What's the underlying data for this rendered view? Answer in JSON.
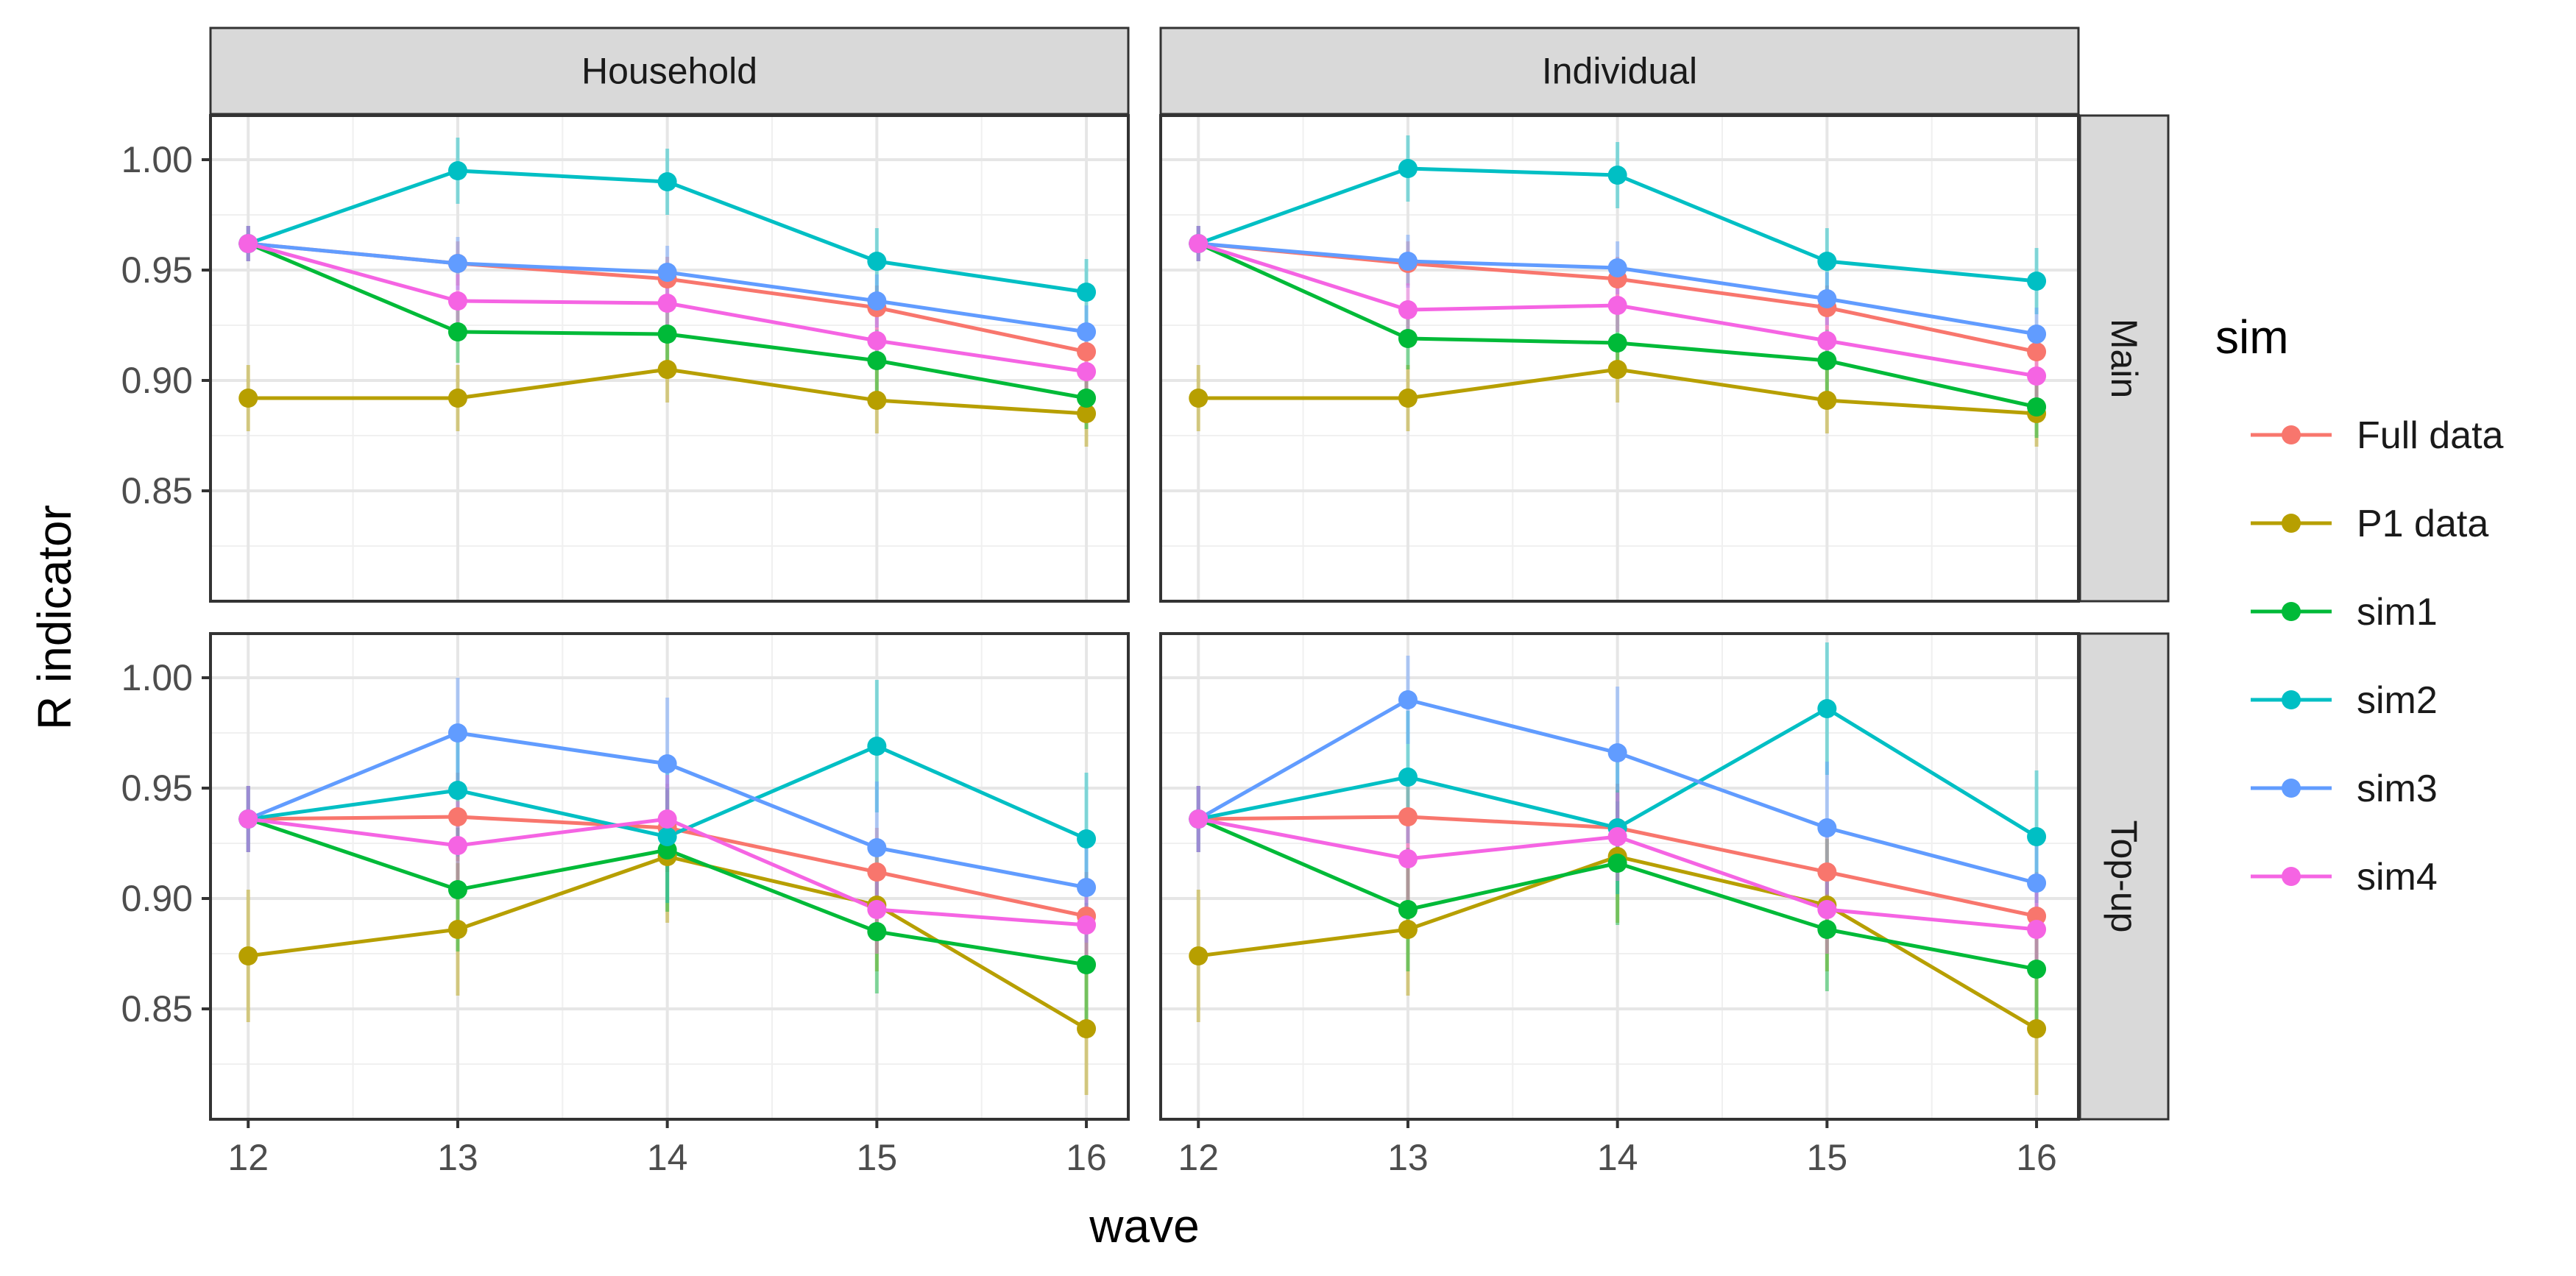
{
  "chart_data": {
    "type": "line",
    "xlabel": "wave",
    "ylabel": "R indicator",
    "x": [
      12,
      13,
      14,
      15,
      16
    ],
    "x_ticks": [
      "12",
      "13",
      "14",
      "15",
      "16"
    ],
    "y_ticks": [
      "0.85",
      "0.90",
      "0.95",
      "1.00"
    ],
    "ylim": [
      0.8,
      1.02
    ],
    "xlim": [
      11.82,
      16.2
    ],
    "grid": true,
    "facet_cols": [
      "Household",
      "Individual"
    ],
    "facet_rows": [
      "Main",
      "Top-up"
    ],
    "legend": {
      "title": "sim",
      "position": "right",
      "entries": [
        {
          "label": "Full data",
          "color": "#F8766D"
        },
        {
          "label": "P1 data",
          "color": "#B79F00"
        },
        {
          "label": "sim1",
          "color": "#00BA38"
        },
        {
          "label": "sim2",
          "color": "#00BFC4"
        },
        {
          "label": "sim3",
          "color": "#619CFF"
        },
        {
          "label": "sim4",
          "color": "#F564E3"
        }
      ]
    },
    "panels": [
      {
        "col": "Household",
        "row": "Main",
        "series": [
          {
            "name": "Full data",
            "values": [
              0.962,
              0.953,
              0.946,
              0.933,
              0.913
            ],
            "err": [
              0.008,
              0.01,
              0.01,
              0.01,
              0.01
            ]
          },
          {
            "name": "P1 data",
            "values": [
              0.892,
              0.892,
              0.905,
              0.891,
              0.885
            ],
            "err": [
              0.015,
              0.015,
              0.015,
              0.015,
              0.015
            ]
          },
          {
            "name": "sim1",
            "values": [
              0.962,
              0.922,
              0.921,
              0.909,
              0.892
            ],
            "err": [
              0.008,
              0.014,
              0.014,
              0.014,
              0.014
            ]
          },
          {
            "name": "sim2",
            "values": [
              0.962,
              0.995,
              0.99,
              0.954,
              0.94
            ],
            "err": [
              0.008,
              0.015,
              0.015,
              0.015,
              0.015
            ]
          },
          {
            "name": "sim3",
            "values": [
              0.962,
              0.953,
              0.949,
              0.936,
              0.922
            ],
            "err": [
              0.008,
              0.012,
              0.012,
              0.012,
              0.012
            ]
          },
          {
            "name": "sim4",
            "values": [
              0.962,
              0.936,
              0.935,
              0.918,
              0.904
            ],
            "err": [
              0.008,
              0.012,
              0.012,
              0.012,
              0.012
            ]
          }
        ]
      },
      {
        "col": "Individual",
        "row": "Main",
        "series": [
          {
            "name": "Full data",
            "values": [
              0.962,
              0.953,
              0.946,
              0.933,
              0.913
            ],
            "err": [
              0.008,
              0.01,
              0.01,
              0.01,
              0.01
            ]
          },
          {
            "name": "P1 data",
            "values": [
              0.892,
              0.892,
              0.905,
              0.891,
              0.885
            ],
            "err": [
              0.015,
              0.015,
              0.015,
              0.015,
              0.015
            ]
          },
          {
            "name": "sim1",
            "values": [
              0.962,
              0.919,
              0.917,
              0.909,
              0.888
            ],
            "err": [
              0.008,
              0.014,
              0.014,
              0.014,
              0.014
            ]
          },
          {
            "name": "sim2",
            "values": [
              0.962,
              0.996,
              0.993,
              0.954,
              0.945
            ],
            "err": [
              0.008,
              0.015,
              0.015,
              0.015,
              0.015
            ]
          },
          {
            "name": "sim3",
            "values": [
              0.962,
              0.954,
              0.951,
              0.937,
              0.921
            ],
            "err": [
              0.008,
              0.012,
              0.012,
              0.012,
              0.012
            ]
          },
          {
            "name": "sim4",
            "values": [
              0.962,
              0.932,
              0.934,
              0.918,
              0.902
            ],
            "err": [
              0.008,
              0.012,
              0.012,
              0.012,
              0.012
            ]
          }
        ]
      },
      {
        "col": "Household",
        "row": "Top-up",
        "series": [
          {
            "name": "Full data",
            "values": [
              0.936,
              0.937,
              0.932,
              0.912,
              0.892
            ],
            "err": [
              0.015,
              0.02,
              0.02,
              0.02,
              0.02
            ]
          },
          {
            "name": "P1 data",
            "values": [
              0.874,
              0.886,
              0.919,
              0.897,
              0.841
            ],
            "err": [
              0.03,
              0.03,
              0.03,
              0.03,
              0.03
            ]
          },
          {
            "name": "sim1",
            "values": [
              0.936,
              0.904,
              0.922,
              0.885,
              0.87
            ],
            "err": [
              0.015,
              0.028,
              0.028,
              0.028,
              0.028
            ]
          },
          {
            "name": "sim2",
            "values": [
              0.936,
              0.949,
              0.928,
              0.969,
              0.927
            ],
            "err": [
              0.015,
              0.03,
              0.03,
              0.03,
              0.03
            ]
          },
          {
            "name": "sim3",
            "values": [
              0.936,
              0.975,
              0.961,
              0.923,
              0.905
            ],
            "err": [
              0.015,
              0.025,
              0.03,
              0.03,
              0.025
            ]
          },
          {
            "name": "sim4",
            "values": [
              0.936,
              0.924,
              0.936,
              0.895,
              0.888
            ],
            "err": [
              0.015,
              0.02,
              0.02,
              0.02,
              0.02
            ]
          }
        ]
      },
      {
        "col": "Individual",
        "row": "Top-up",
        "series": [
          {
            "name": "Full data",
            "values": [
              0.936,
              0.937,
              0.932,
              0.912,
              0.892
            ],
            "err": [
              0.015,
              0.02,
              0.02,
              0.02,
              0.02
            ]
          },
          {
            "name": "P1 data",
            "values": [
              0.874,
              0.886,
              0.919,
              0.897,
              0.841
            ],
            "err": [
              0.03,
              0.03,
              0.03,
              0.03,
              0.03
            ]
          },
          {
            "name": "sim1",
            "values": [
              0.936,
              0.895,
              0.916,
              0.886,
              0.868
            ],
            "err": [
              0.015,
              0.028,
              0.028,
              0.028,
              0.028
            ]
          },
          {
            "name": "sim2",
            "values": [
              0.936,
              0.955,
              0.932,
              0.986,
              0.928
            ],
            "err": [
              0.015,
              0.03,
              0.03,
              0.03,
              0.03
            ]
          },
          {
            "name": "sim3",
            "values": [
              0.936,
              0.99,
              0.966,
              0.932,
              0.907
            ],
            "err": [
              0.015,
              0.02,
              0.03,
              0.03,
              0.025
            ]
          },
          {
            "name": "sim4",
            "values": [
              0.936,
              0.918,
              0.928,
              0.895,
              0.886
            ],
            "err": [
              0.015,
              0.02,
              0.02,
              0.02,
              0.02
            ]
          }
        ]
      }
    ]
  }
}
